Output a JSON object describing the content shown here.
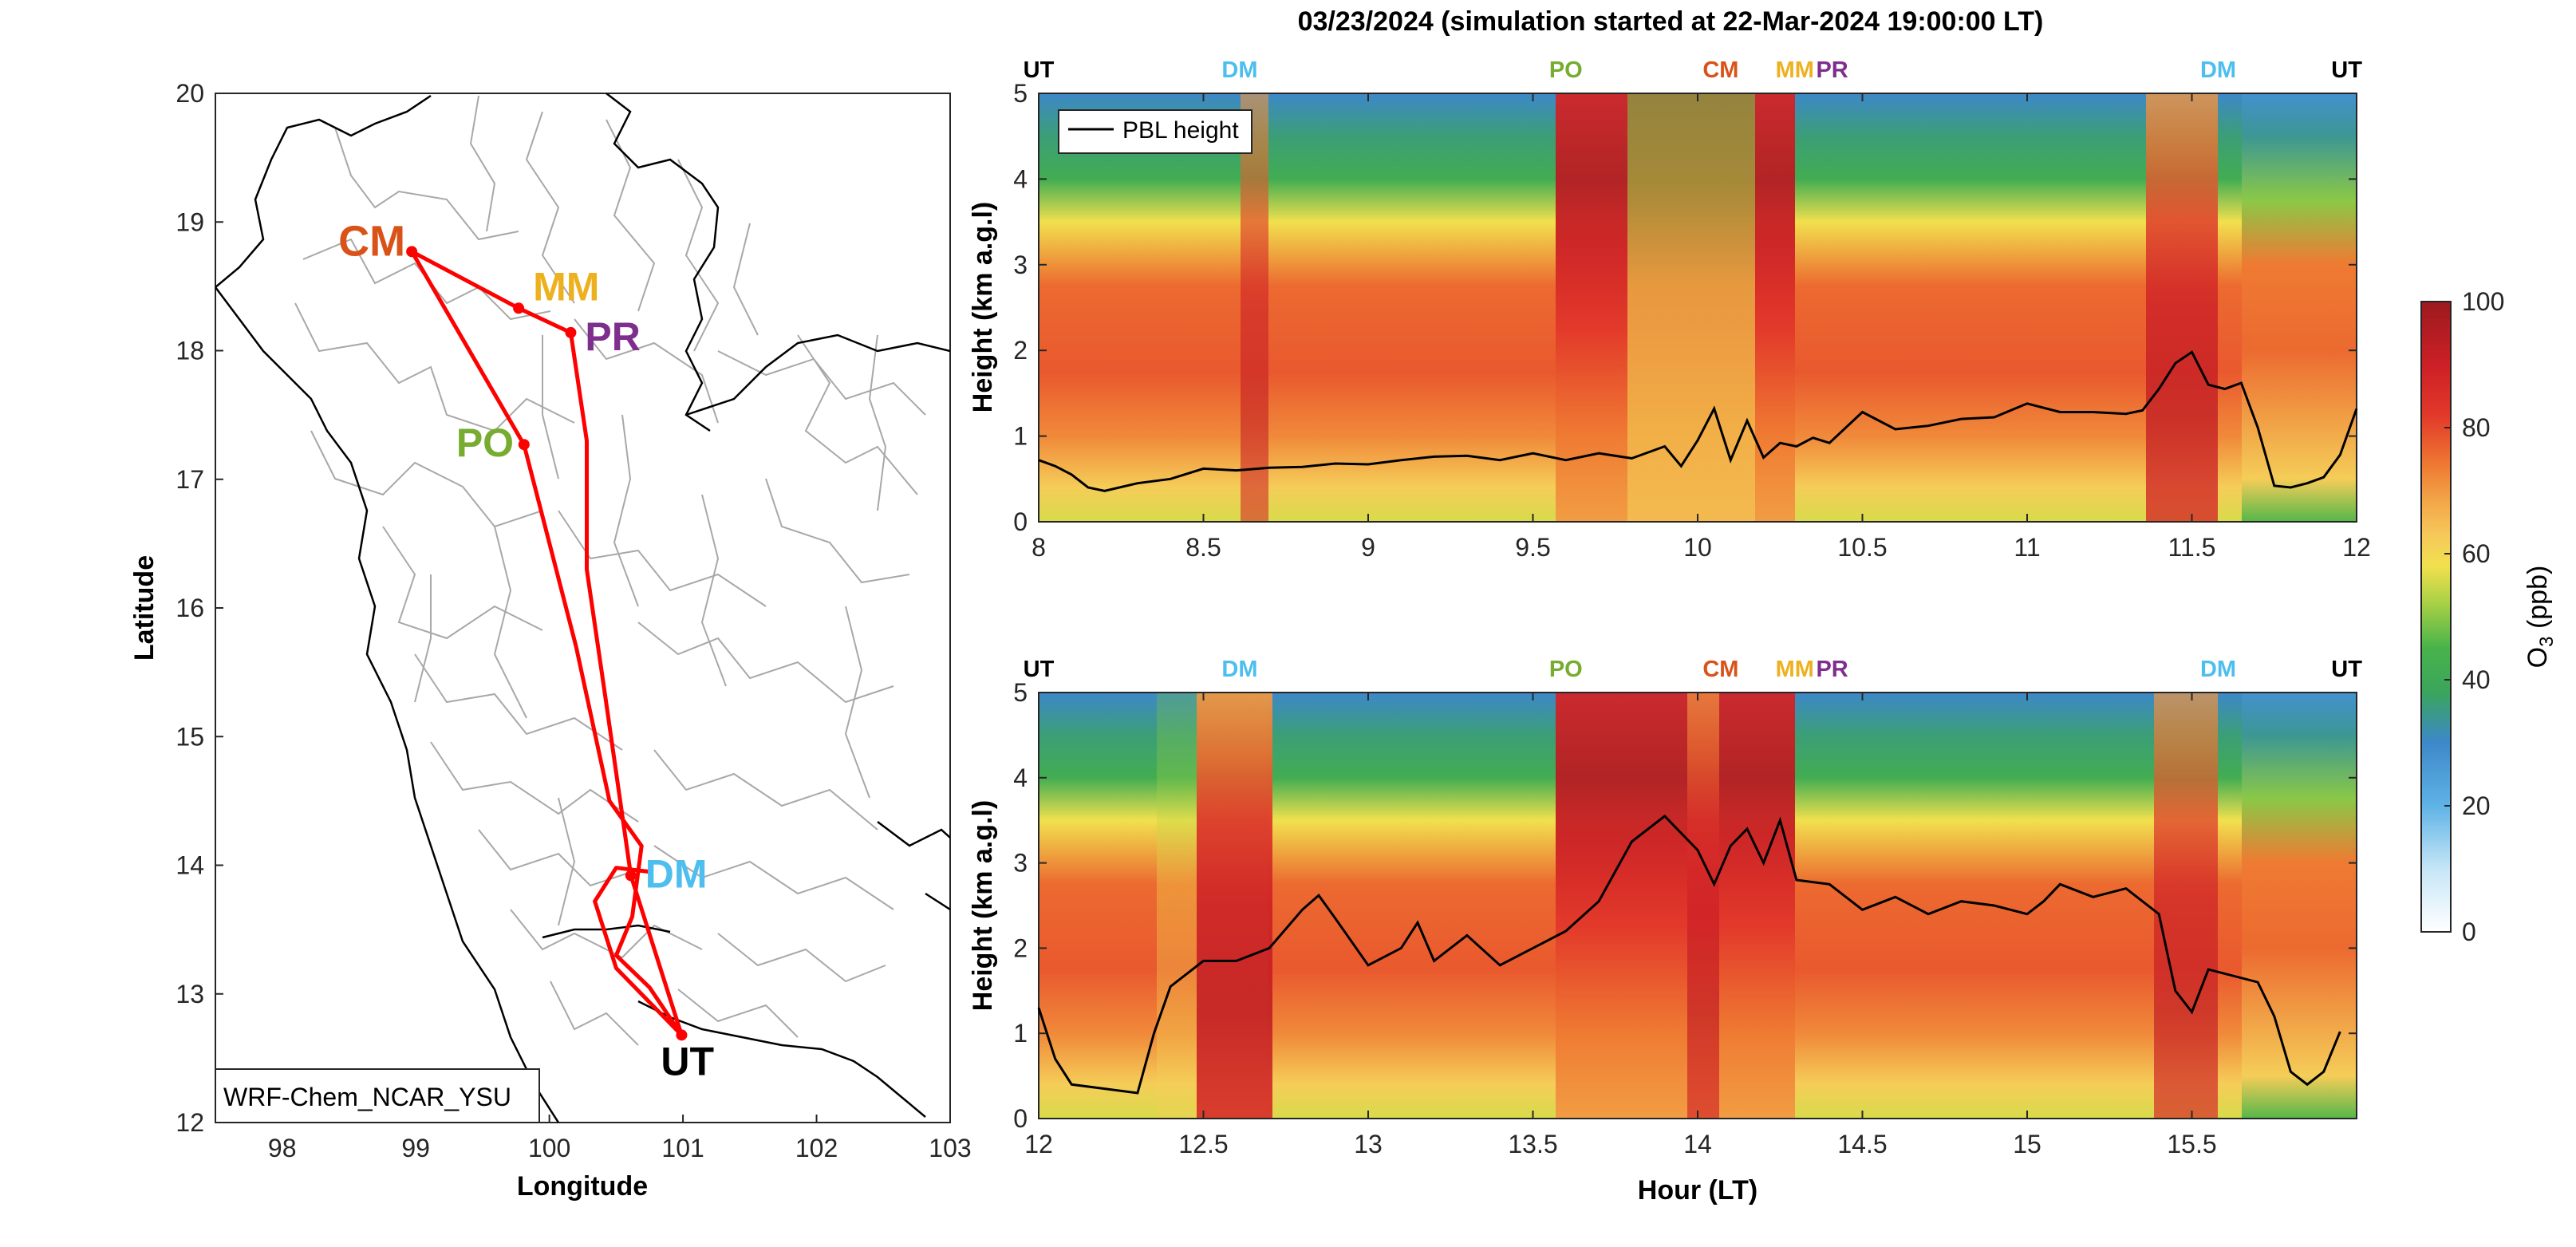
{
  "figure_title": "03/23/2024 (simulation started at 22-Mar-2024 19:00:00 LT)",
  "colors": {
    "CM": "#d95319",
    "MM": "#edb120",
    "PR": "#7e2f8e",
    "PO": "#77ac30",
    "DM": "#4dbeee",
    "UT": "#000000",
    "route": "#ff0000",
    "pbl": "#000000"
  },
  "chart_data": [
    {
      "type": "scatter",
      "id": "map",
      "title": "",
      "xlabel": "Longitude",
      "ylabel": "Latitude",
      "xlim": [
        97.5,
        103
      ],
      "ylim": [
        12,
        20
      ],
      "xticks": [
        "98",
        "99",
        "100",
        "101",
        "102",
        "103"
      ],
      "yticks": [
        "12",
        "13",
        "14",
        "15",
        "16",
        "17",
        "18",
        "19",
        "20"
      ],
      "model_label": "WRF-Chem_NCAR_YSU",
      "sites": [
        {
          "name": "CM",
          "lon": 98.97,
          "lat": 18.77
        },
        {
          "name": "MM",
          "lon": 99.77,
          "lat": 18.33
        },
        {
          "name": "PR",
          "lon": 100.16,
          "lat": 18.14
        },
        {
          "name": "PO",
          "lon": 99.81,
          "lat": 17.27
        },
        {
          "name": "DM",
          "lon": 100.61,
          "lat": 13.92
        },
        {
          "name": "UT",
          "lon": 100.99,
          "lat": 12.68
        }
      ],
      "route": [
        [
          100.99,
          12.68
        ],
        [
          100.61,
          13.92
        ],
        [
          100.42,
          15.3
        ],
        [
          100.28,
          16.3
        ],
        [
          100.28,
          17.3
        ],
        [
          100.16,
          18.14
        ],
        [
          99.77,
          18.33
        ],
        [
          98.97,
          18.77
        ],
        [
          99.81,
          17.27
        ],
        [
          100.2,
          15.7
        ],
        [
          100.45,
          14.5
        ],
        [
          100.69,
          14.15
        ],
        [
          100.62,
          13.6
        ],
        [
          100.5,
          13.3
        ],
        [
          100.75,
          13.05
        ],
        [
          100.99,
          12.68
        ],
        [
          100.5,
          13.2
        ],
        [
          100.34,
          13.72
        ],
        [
          100.5,
          13.98
        ],
        [
          100.75,
          13.95
        ]
      ]
    },
    {
      "type": "heatmap",
      "id": "panel-1",
      "ylabel": "Height (km a.g.l)",
      "xlim": [
        8,
        12
      ],
      "ylim": [
        0,
        5
      ],
      "xticks": [
        "8",
        "8.5",
        "9",
        "9.5",
        "10",
        "10.5",
        "11",
        "11.5",
        "12"
      ],
      "yticks": [
        "0",
        "1",
        "2",
        "3",
        "4",
        "5"
      ],
      "legend": {
        "label": "PBL height",
        "position": "top-left"
      },
      "site_markers": [
        {
          "name": "UT",
          "x": 8.0
        },
        {
          "name": "DM",
          "x": 8.61
        },
        {
          "name": "PO",
          "x": 9.6
        },
        {
          "name": "CM",
          "x": 10.07
        },
        {
          "name": "MM",
          "x": 10.3
        },
        {
          "name": "PR",
          "x": 10.42
        },
        {
          "name": "DM",
          "x": 11.58
        },
        {
          "name": "UT",
          "x": 11.97
        }
      ],
      "pbl": {
        "x": [
          8.0,
          8.05,
          8.1,
          8.15,
          8.2,
          8.3,
          8.4,
          8.5,
          8.6,
          8.7,
          8.8,
          8.9,
          9.0,
          9.1,
          9.2,
          9.3,
          9.4,
          9.5,
          9.6,
          9.7,
          9.8,
          9.9,
          9.95,
          10.0,
          10.05,
          10.1,
          10.15,
          10.2,
          10.25,
          10.3,
          10.35,
          10.4,
          10.5,
          10.6,
          10.7,
          10.8,
          10.9,
          11.0,
          11.1,
          11.2,
          11.3,
          11.35,
          11.4,
          11.45,
          11.5,
          11.55,
          11.6,
          11.65,
          11.7,
          11.75,
          11.8,
          11.85,
          11.9,
          11.95,
          12.0
        ],
        "y": [
          0.72,
          0.65,
          0.55,
          0.4,
          0.36,
          0.45,
          0.5,
          0.62,
          0.6,
          0.63,
          0.64,
          0.68,
          0.67,
          0.72,
          0.76,
          0.77,
          0.72,
          0.8,
          0.72,
          0.8,
          0.74,
          0.88,
          0.65,
          0.95,
          1.32,
          0.72,
          1.18,
          0.75,
          0.92,
          0.88,
          0.98,
          0.92,
          1.28,
          1.08,
          1.12,
          1.2,
          1.22,
          1.38,
          1.28,
          1.28,
          1.26,
          1.3,
          1.55,
          1.85,
          1.98,
          1.6,
          1.55,
          1.62,
          1.1,
          0.42,
          0.4,
          0.45,
          0.52,
          0.78,
          1.32
        ]
      }
    },
    {
      "type": "heatmap",
      "id": "panel-2",
      "xlabel": "Hour (LT)",
      "ylabel": "Height (km a.g.l)",
      "xlim": [
        12,
        16
      ],
      "ylim": [
        0,
        5
      ],
      "xticks": [
        "12",
        "12.5",
        "13",
        "13.5",
        "14",
        "14.5",
        "15",
        "15.5"
      ],
      "yticks": [
        "0",
        "1",
        "2",
        "3",
        "4",
        "5"
      ],
      "site_markers": [
        {
          "name": "UT",
          "x": 12.0
        },
        {
          "name": "DM",
          "x": 12.61
        },
        {
          "name": "PO",
          "x": 13.6
        },
        {
          "name": "CM",
          "x": 14.07
        },
        {
          "name": "MM",
          "x": 14.3
        },
        {
          "name": "PR",
          "x": 14.42
        },
        {
          "name": "DM",
          "x": 15.58
        },
        {
          "name": "UT",
          "x": 15.97
        }
      ],
      "pbl": {
        "x": [
          12.0,
          12.05,
          12.1,
          12.2,
          12.3,
          12.35,
          12.4,
          12.5,
          12.6,
          12.7,
          12.8,
          12.85,
          12.9,
          13.0,
          13.1,
          13.15,
          13.2,
          13.3,
          13.4,
          13.5,
          13.6,
          13.7,
          13.8,
          13.9,
          14.0,
          14.05,
          14.1,
          14.15,
          14.2,
          14.25,
          14.3,
          14.4,
          14.5,
          14.6,
          14.7,
          14.8,
          14.9,
          15.0,
          15.05,
          15.1,
          15.2,
          15.3,
          15.4,
          15.45,
          15.5,
          15.55,
          15.6,
          15.7,
          15.75,
          15.8,
          15.85,
          15.9,
          15.95
        ],
        "y": [
          1.3,
          0.7,
          0.4,
          0.35,
          0.3,
          1.0,
          1.55,
          1.85,
          1.85,
          2.0,
          2.45,
          2.62,
          2.35,
          1.8,
          2.0,
          2.3,
          1.85,
          2.15,
          1.8,
          2.0,
          2.2,
          2.55,
          3.25,
          3.55,
          3.15,
          2.75,
          3.2,
          3.4,
          3.0,
          3.5,
          2.8,
          2.75,
          2.45,
          2.6,
          2.4,
          2.55,
          2.5,
          2.4,
          2.55,
          2.75,
          2.6,
          2.7,
          2.4,
          1.5,
          1.25,
          1.75,
          1.7,
          1.6,
          1.2,
          0.55,
          0.4,
          0.55,
          1.02
        ]
      }
    },
    {
      "type": "colorbar",
      "id": "colorbar",
      "label": "O",
      "label_sub": "3",
      "label_unit": " (ppb)",
      "range": [
        0,
        100
      ],
      "ticks": [
        "0",
        "20",
        "40",
        "60",
        "80",
        "100"
      ],
      "stops": [
        [
          0,
          "#ffffff"
        ],
        [
          10,
          "#c6e6f7"
        ],
        [
          20,
          "#5fb3e6"
        ],
        [
          30,
          "#3d88c9"
        ],
        [
          38,
          "#3aa55c"
        ],
        [
          45,
          "#48b34b"
        ],
        [
          52,
          "#a6d045"
        ],
        [
          58,
          "#f1e04e"
        ],
        [
          63,
          "#f6c85a"
        ],
        [
          68,
          "#f3a84a"
        ],
        [
          74,
          "#ef7a32"
        ],
        [
          82,
          "#e2382a"
        ],
        [
          90,
          "#cc1f26"
        ],
        [
          100,
          "#9b1a1e"
        ]
      ]
    }
  ]
}
